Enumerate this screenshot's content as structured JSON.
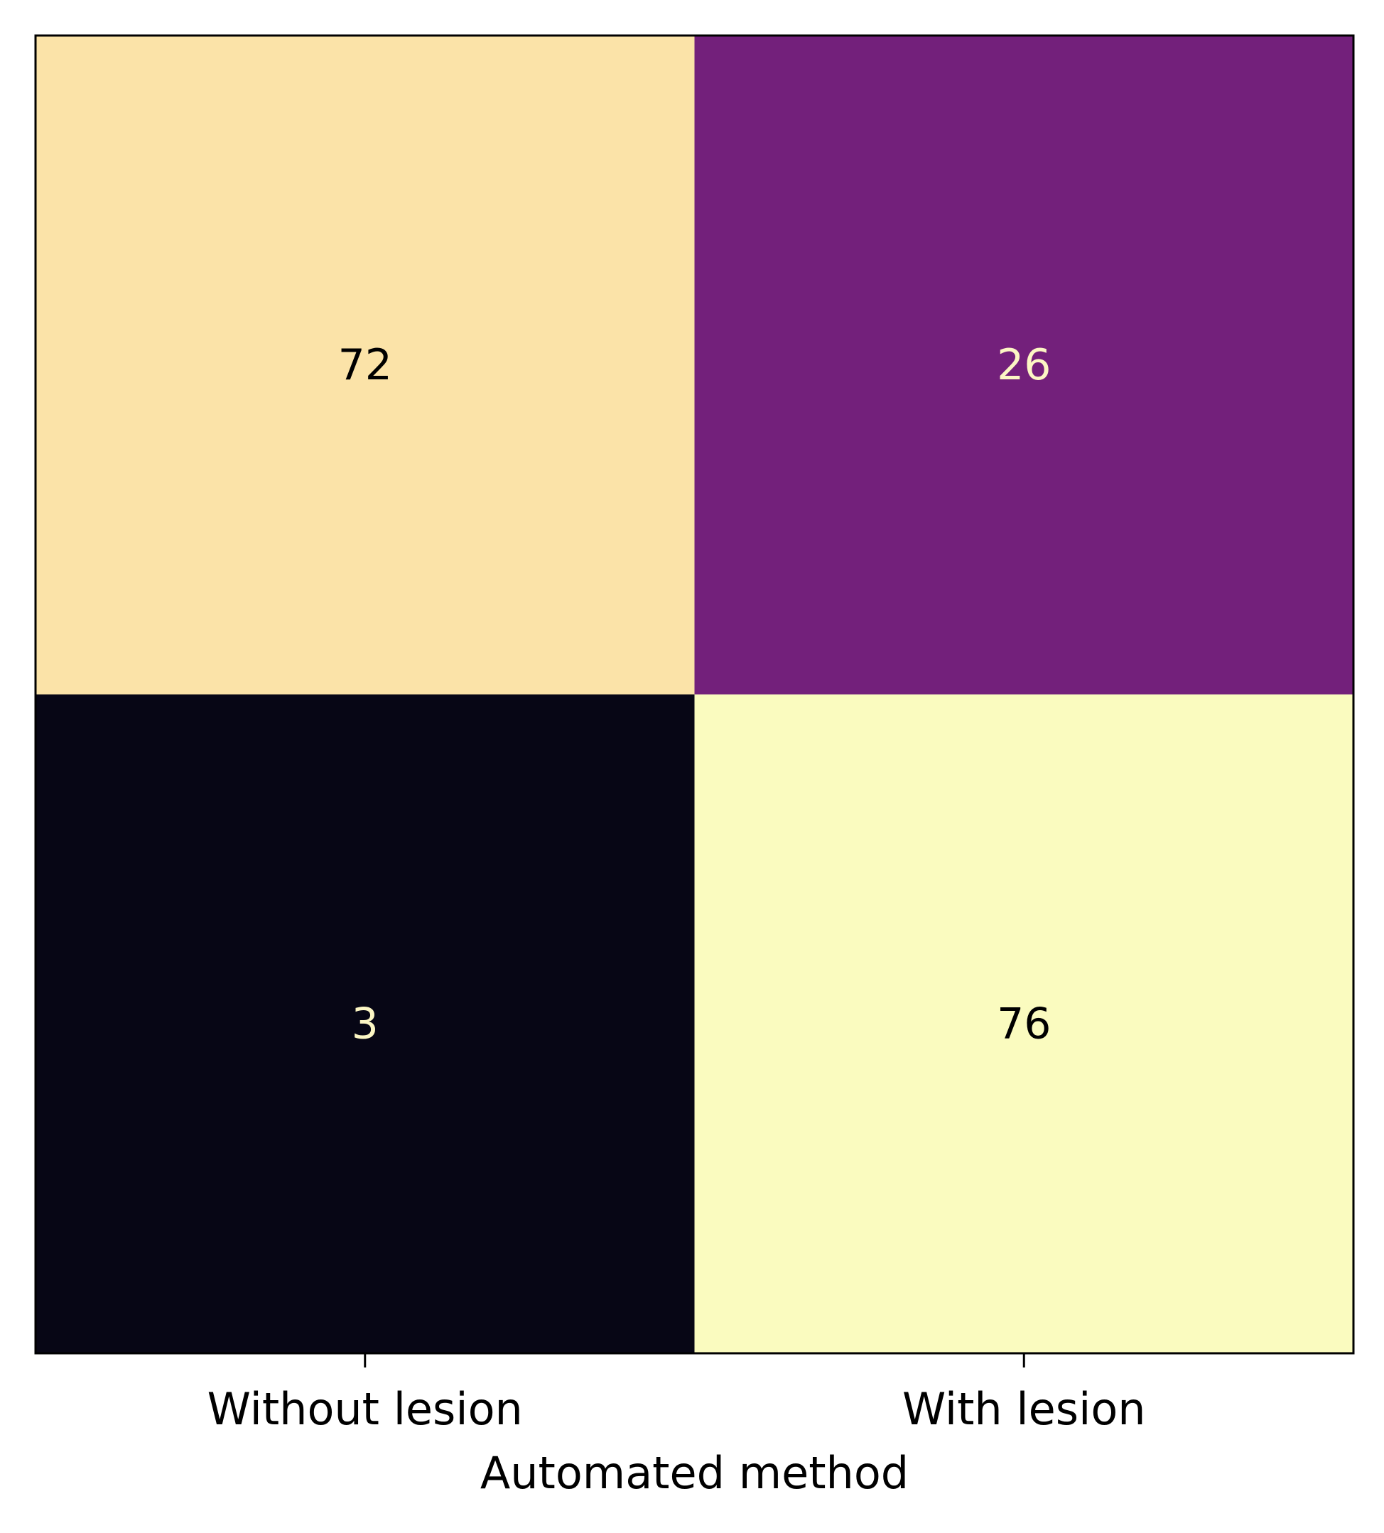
{
  "chart_data": {
    "type": "heatmap",
    "title": "",
    "xlabel": "Automated method",
    "ylabel": "",
    "x_categories": [
      "Without lesion",
      "With lesion"
    ],
    "y_categories": [],
    "values": [
      [
        72,
        26
      ],
      [
        3,
        76
      ]
    ],
    "cell_colors": [
      [
        "#fbe3a8",
        "#73207b"
      ],
      [
        "#070615",
        "#fafbbf"
      ]
    ],
    "text_colors": [
      [
        "#000000",
        "#fcf6c4"
      ],
      [
        "#fcf6c4",
        "#000000"
      ]
    ],
    "colormap": "magma",
    "grid": false,
    "legend": "none",
    "colorbar": false
  }
}
